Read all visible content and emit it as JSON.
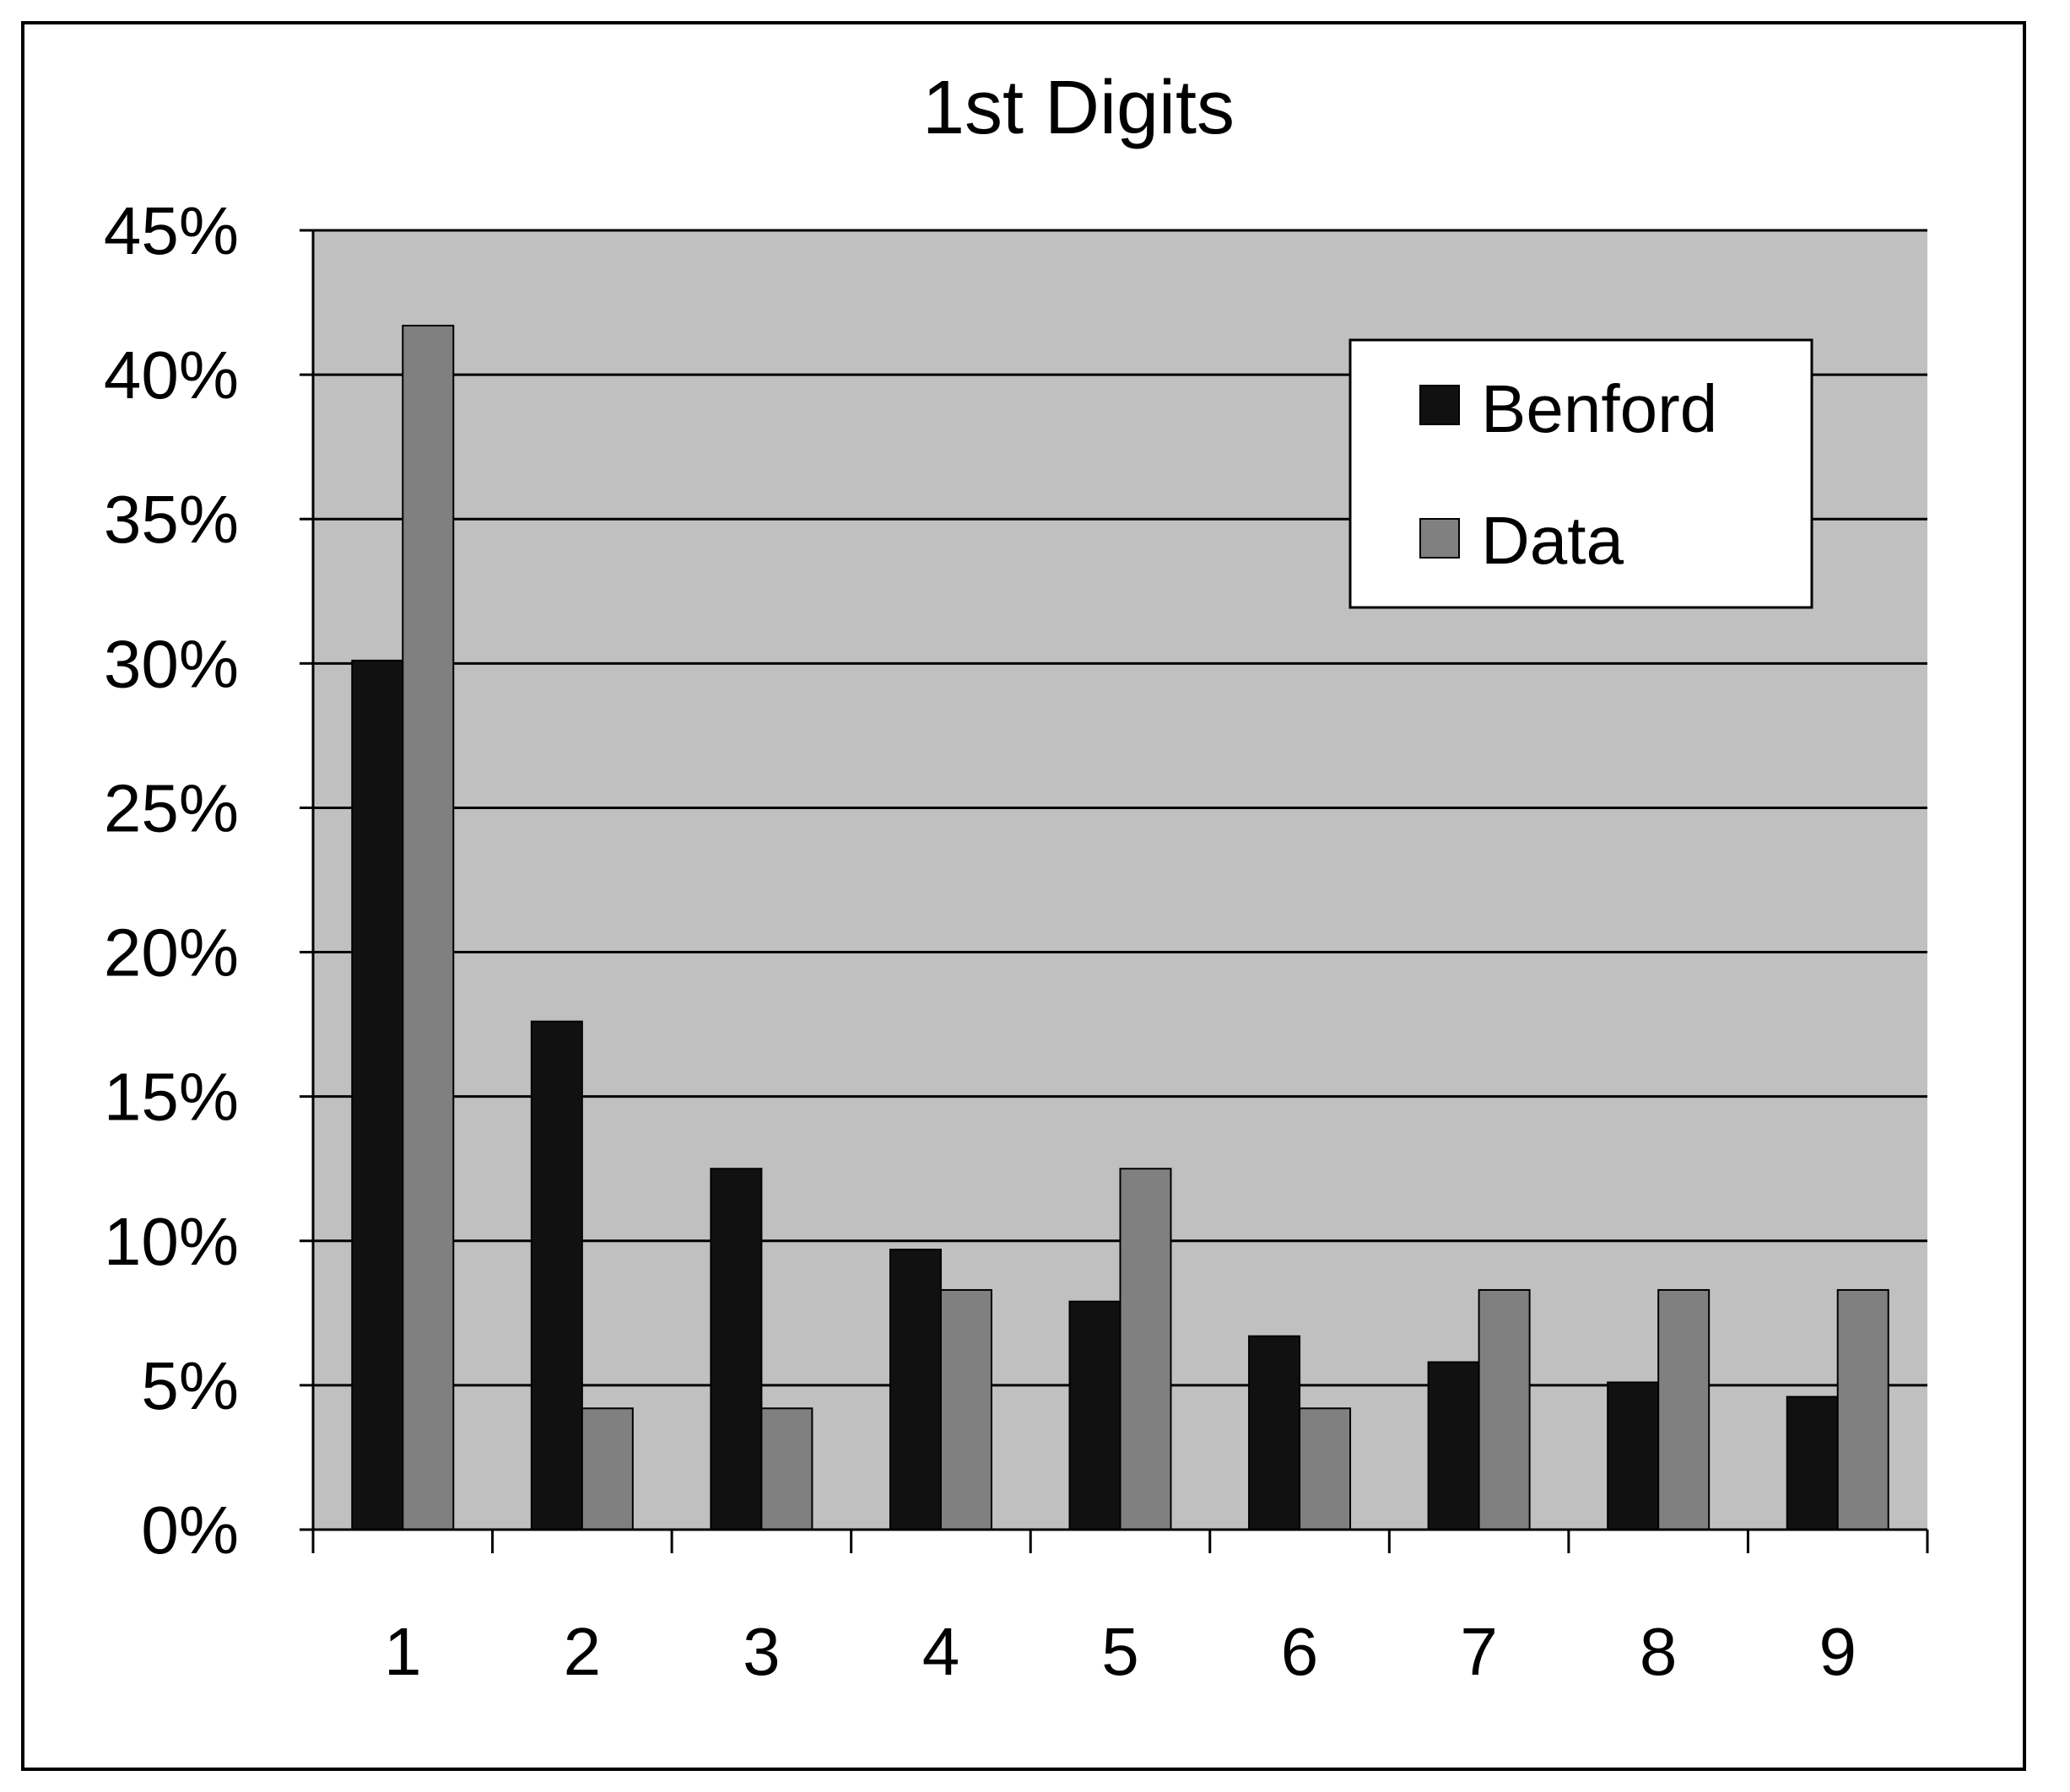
{
  "chart_data": {
    "type": "bar",
    "title": "1st Digits",
    "xlabel": "",
    "ylabel": "",
    "categories": [
      "1",
      "2",
      "3",
      "4",
      "5",
      "6",
      "7",
      "8",
      "9"
    ],
    "series": [
      {
        "name": "Benford",
        "color": "#111111",
        "values": [
          0.301,
          0.176,
          0.125,
          0.097,
          0.079,
          0.067,
          0.058,
          0.051,
          0.046
        ]
      },
      {
        "name": "Data",
        "color": "#808080",
        "values": [
          0.417,
          0.042,
          0.042,
          0.083,
          0.125,
          0.042,
          0.083,
          0.083,
          0.083
        ]
      }
    ],
    "ylim": [
      0,
      0.45
    ],
    "yticks": [
      0,
      0.05,
      0.1,
      0.15,
      0.2,
      0.25,
      0.3,
      0.35,
      0.4,
      0.45
    ],
    "ytick_labels": [
      "0%",
      "5%",
      "10%",
      "15%",
      "20%",
      "25%",
      "30%",
      "35%",
      "40%",
      "45%"
    ],
    "grid": true,
    "legend_position": "top-right",
    "plot_background": "#c0c0c0"
  }
}
